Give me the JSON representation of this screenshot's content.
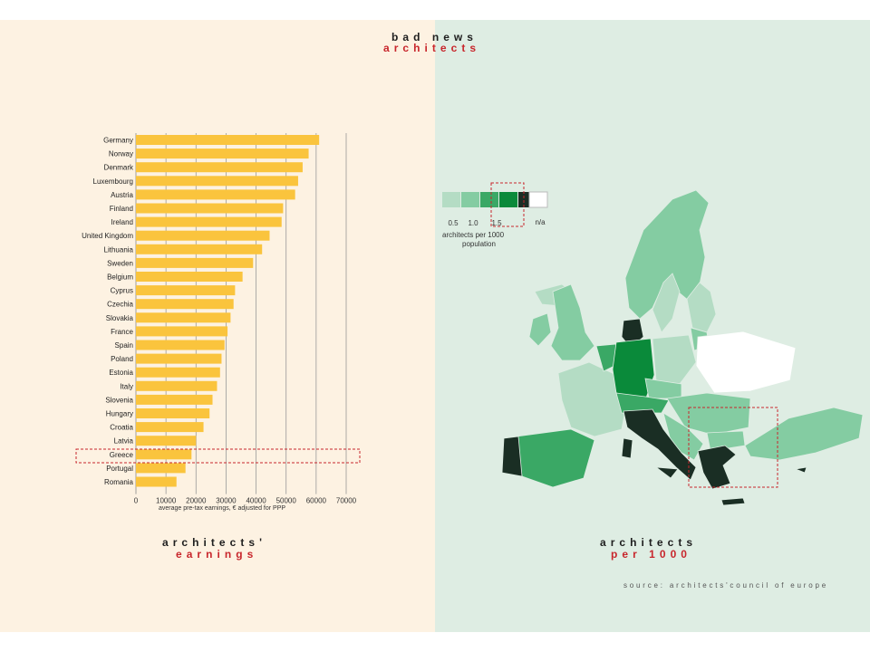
{
  "header": {
    "line1": "bad news",
    "line2": "architects"
  },
  "left_caption": {
    "line1": "architects'",
    "line2": "earnings"
  },
  "right_caption": {
    "line1": "architects",
    "line2": "per 1000"
  },
  "source": "source: architects'council of europe",
  "colors": {
    "bar": "#fac43d",
    "accent_red": "#c8262c",
    "left_bg": "#fdf2e2",
    "right_bg": "#deede3"
  },
  "chart_data": [
    {
      "type": "bar",
      "orientation": "horizontal",
      "xlabel": "average pre-tax earnings, € adjusted for PPP",
      "xlim": [
        0,
        70000
      ],
      "xticks": [
        0,
        10000,
        20000,
        30000,
        40000,
        50000,
        60000,
        70000
      ],
      "grid": true,
      "highlight": "Greece",
      "categories": [
        "Germany",
        "Norway",
        "Denmark",
        "Luxembourg",
        "Austria",
        "Finland",
        "Ireland",
        "United Kingdom",
        "Lithuania",
        "Sweden",
        "Belgium",
        "Cyprus",
        "Czechia",
        "Slovakia",
        "France",
        "Spain",
        "Poland",
        "Estonia",
        "Italy",
        "Slovenia",
        "Hungary",
        "Croatia",
        "Latvia",
        "Greece",
        "Portugal",
        "Romania"
      ],
      "values": [
        61000,
        57500,
        55500,
        54000,
        53000,
        49000,
        48500,
        44500,
        42000,
        39000,
        35500,
        33000,
        32500,
        31500,
        30500,
        29500,
        28500,
        28000,
        27000,
        25500,
        24500,
        22500,
        20000,
        18500,
        16500,
        13500
      ]
    },
    {
      "type": "choropleth",
      "legend": {
        "title": "architects per 1000 population",
        "ticks": [
          "0.5",
          "1.0",
          "1.5"
        ],
        "na_label": "n/a",
        "colors": [
          "#b4dcc4",
          "#84cca2",
          "#3aa865",
          "#0a8a3a",
          "#1a2e24"
        ],
        "na_color": "#ffffff"
      },
      "highlight": "Greece"
    }
  ]
}
